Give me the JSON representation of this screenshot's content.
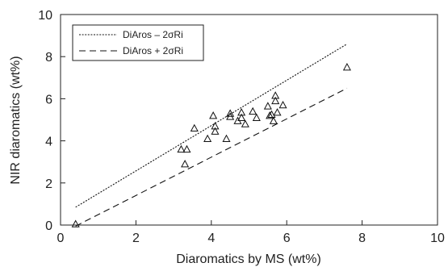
{
  "chart_data": {
    "type": "scatter",
    "title": "",
    "xlabel": "Diaromatics by MS (wt%)",
    "ylabel": "NIR diaromatics (wt%)",
    "xlim": [
      0,
      10
    ],
    "ylim": [
      0,
      10
    ],
    "x_ticks": [
      0,
      2,
      4,
      6,
      8,
      10
    ],
    "y_ticks": [
      0,
      2,
      4,
      6,
      8,
      10
    ],
    "grid": false,
    "legend_position": "top-left",
    "marker": "open-triangle",
    "series": [
      {
        "points": [
          {
            "x": 0.4,
            "y": 0.05
          },
          {
            "x": 3.2,
            "y": 3.6
          },
          {
            "x": 3.3,
            "y": 2.9
          },
          {
            "x": 3.35,
            "y": 3.6
          },
          {
            "x": 3.55,
            "y": 4.6
          },
          {
            "x": 3.9,
            "y": 4.1
          },
          {
            "x": 4.05,
            "y": 5.2
          },
          {
            "x": 4.1,
            "y": 4.7
          },
          {
            "x": 4.1,
            "y": 4.45
          },
          {
            "x": 4.4,
            "y": 4.1
          },
          {
            "x": 4.5,
            "y": 5.15
          },
          {
            "x": 4.5,
            "y": 5.3
          },
          {
            "x": 4.7,
            "y": 4.95
          },
          {
            "x": 4.8,
            "y": 5.1
          },
          {
            "x": 4.8,
            "y": 5.35
          },
          {
            "x": 4.9,
            "y": 4.8
          },
          {
            "x": 5.1,
            "y": 5.4
          },
          {
            "x": 5.2,
            "y": 5.1
          },
          {
            "x": 5.5,
            "y": 5.65
          },
          {
            "x": 5.55,
            "y": 5.2
          },
          {
            "x": 5.6,
            "y": 5.25
          },
          {
            "x": 5.65,
            "y": 4.95
          },
          {
            "x": 5.7,
            "y": 6.15
          },
          {
            "x": 5.7,
            "y": 5.9
          },
          {
            "x": 5.75,
            "y": 5.35
          },
          {
            "x": 5.9,
            "y": 5.7
          },
          {
            "x": 7.6,
            "y": 7.5
          }
        ]
      }
    ],
    "lines": [
      {
        "name": "DiAros – 2σRi",
        "style": "dotted",
        "x": [
          0.4,
          7.6
        ],
        "y": [
          0.85,
          8.6
        ]
      },
      {
        "name": "DiAros + 2σRi",
        "style": "dashed",
        "x": [
          0.4,
          7.6
        ],
        "y": [
          -0.05,
          6.5
        ]
      }
    ]
  }
}
